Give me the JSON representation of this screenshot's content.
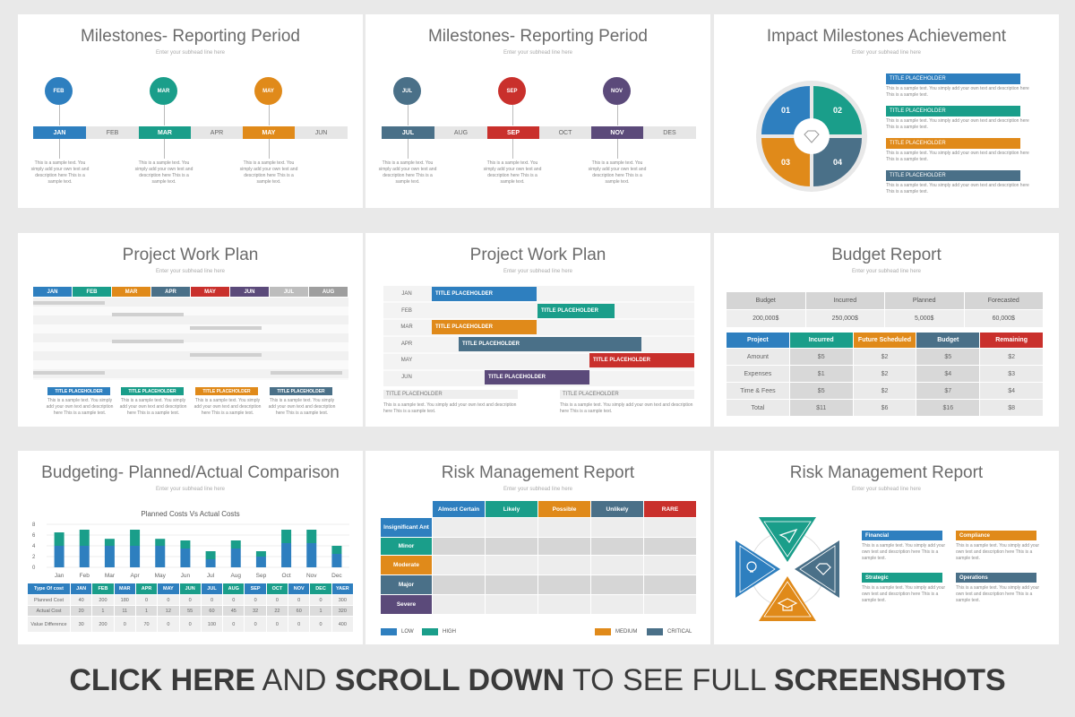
{
  "colors": {
    "blue": "#2e7fbf",
    "teal": "#1a9e8a",
    "orange": "#e08a1a",
    "red": "#c9302c",
    "purple": "#5b4a7a",
    "slate": "#4a7088",
    "gray": "#d9d9d9"
  },
  "common": {
    "subhead": "Enter your subhead line here",
    "sample_text": "This is a sample text. You simply add your own text and description here This is a sample text.",
    "placeholder": "TITLE PLACEHOLDER"
  },
  "slide1": {
    "title": "Milestones- Reporting Period",
    "circles": [
      "FEB",
      "MAR",
      "MAY"
    ],
    "bar": [
      "JAN",
      "FEB",
      "MAR",
      "APR",
      "MAY",
      "JUN"
    ]
  },
  "slide2": {
    "title": "Milestones- Reporting Period",
    "circles": [
      "JUL",
      "SEP",
      "NOV"
    ],
    "bar": [
      "JUL",
      "AUG",
      "SEP",
      "OCT",
      "NOV",
      "DES"
    ]
  },
  "slide3": {
    "title": "Impact Milestones Achievement",
    "quadrants": [
      "01",
      "02",
      "03",
      "04"
    ]
  },
  "slide4": {
    "title": "Project Work Plan",
    "months": [
      "JAN",
      "FEB",
      "MAR",
      "APR",
      "MAY",
      "JUN",
      "JUL",
      "AUG"
    ]
  },
  "slide5": {
    "title": "Project Work Plan",
    "months": [
      "JAN",
      "FEB",
      "MAR",
      "APR",
      "MAY",
      "JUN"
    ]
  },
  "slide6": {
    "title": "Budget Report",
    "top_headers": [
      "Budget",
      "Incurred",
      "Planned",
      "Forecasted"
    ],
    "top_values": [
      "200,000$",
      "250,000$",
      "5,000$",
      "60,000$"
    ],
    "headers": [
      "Project",
      "Incurred",
      "Future Scheduled",
      "Budget",
      "Remaining"
    ],
    "rows": [
      [
        "Amount",
        "$5",
        "$2",
        "$5",
        "$2"
      ],
      [
        "Expenses",
        "$1",
        "$2",
        "$4",
        "$3"
      ],
      [
        "Time & Fees",
        "$5",
        "$2",
        "$7",
        "$4"
      ],
      [
        "Total",
        "$11",
        "$6",
        "$16",
        "$8"
      ]
    ]
  },
  "slide7": {
    "title": "Budgeting- Planned/Actual Comparison",
    "chart_title": "Planned Costs Vs Actual Costs",
    "table_headers": [
      "Type Of cost",
      "JAN",
      "FEB",
      "MAR",
      "APR",
      "MAY",
      "JUN",
      "JUL",
      "AUG",
      "SEP",
      "OCT",
      "NOV",
      "DEC",
      "YAER"
    ],
    "table_rows": [
      [
        "Planned Cost",
        "40",
        "200",
        "180",
        "0",
        "0",
        "0",
        "0",
        "0",
        "0",
        "0",
        "0",
        "0",
        "300"
      ],
      [
        "Actual Cost",
        "20",
        "1",
        "11",
        "1",
        "12",
        "55",
        "60",
        "45",
        "32",
        "22",
        "60",
        "1",
        "320"
      ],
      [
        "Value Difference",
        "30",
        "200",
        "0",
        "70",
        "0",
        "0",
        "100",
        "0",
        "0",
        "0",
        "0",
        "0",
        "400"
      ]
    ]
  },
  "chart_data": {
    "type": "bar",
    "categories": [
      "Jan",
      "Feb",
      "Mar",
      "Apr",
      "May",
      "Jun",
      "Jul",
      "Aug",
      "Sep",
      "Oct",
      "Nov",
      "Dec"
    ],
    "series": [
      {
        "values": [
          4,
          4,
          4,
          4,
          4,
          3.5,
          1.5,
          3.5,
          2,
          4.5,
          4.5,
          2.5
        ]
      },
      {
        "values": [
          2.5,
          3,
          1.3,
          3,
          1.3,
          1.5,
          1.5,
          1.5,
          1,
          2.5,
          2.5,
          1.5
        ]
      }
    ],
    "ylim": [
      0,
      8
    ],
    "yticks": [
      "0",
      "2",
      "4",
      "6",
      "8"
    ],
    "title": "Planned Costs Vs Actual Costs"
  },
  "slide8": {
    "title": "Risk Management Report",
    "cols": [
      "Almost Certain",
      "Likely",
      "Possible",
      "Unlikely",
      "RARE"
    ],
    "rows": [
      "Insignificant Ant",
      "Minor",
      "Moderate",
      "Major",
      "Severe"
    ],
    "legend": [
      "LOW",
      "HIGH",
      "MEDIUM",
      "CRITICAL"
    ]
  },
  "slide9": {
    "title": "Risk Management Report",
    "items": [
      "Financial",
      "Compliance",
      "Strategic",
      "Operations"
    ]
  },
  "footer": {
    "p1": "CLICK HERE",
    "p2": " AND ",
    "p3": "SCROLL DOWN",
    "p4": " TO SEE FULL ",
    "p5": "SCREENSHOTS"
  }
}
